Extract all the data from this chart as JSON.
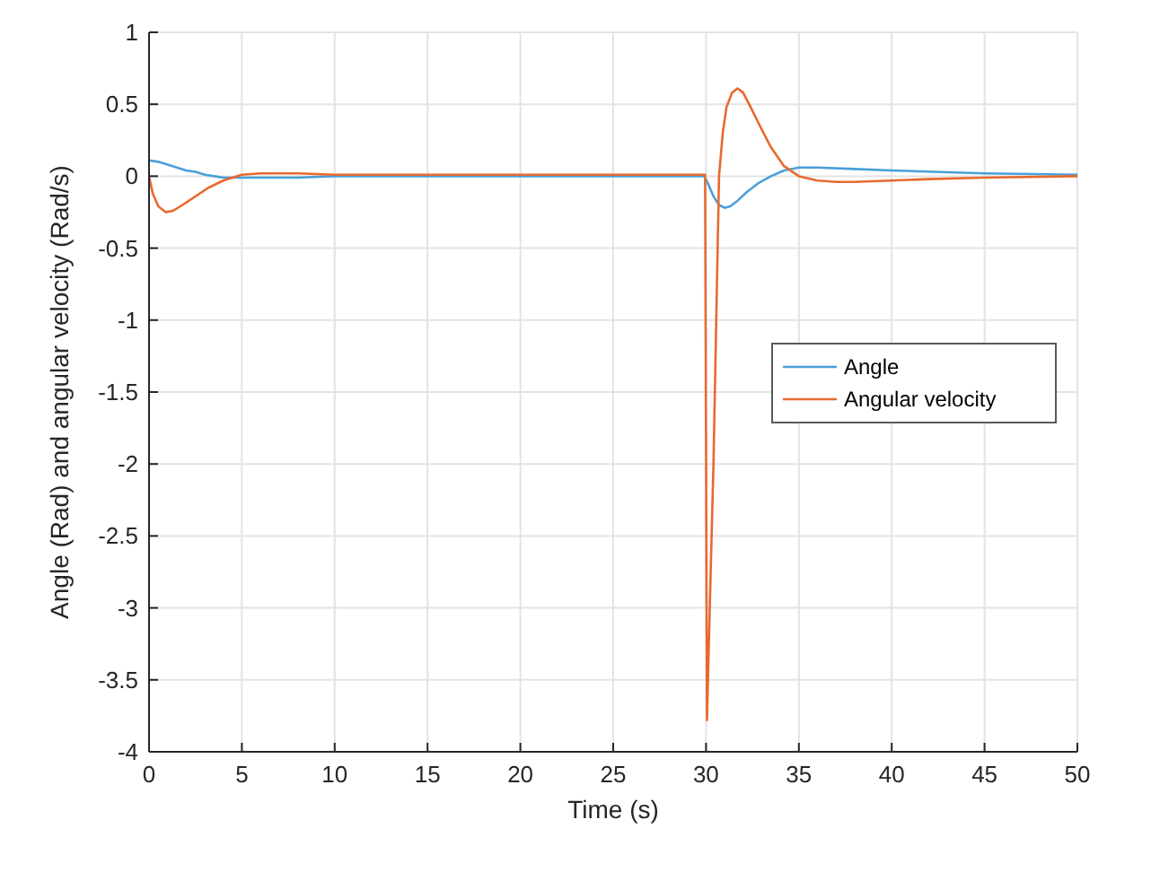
{
  "chart_data": {
    "type": "line",
    "xlabel": "Time (s)",
    "ylabel": "Angle (Rad) and angular velocity (Rad/s)",
    "xlim": [
      0,
      50
    ],
    "ylim": [
      -4,
      1
    ],
    "xticks": [
      0,
      5,
      10,
      15,
      20,
      25,
      30,
      35,
      40,
      45,
      50
    ],
    "yticks": [
      -4,
      -3.5,
      -3,
      -2.5,
      -2,
      -1.5,
      -1,
      -0.5,
      0,
      0.5,
      1
    ],
    "grid": true,
    "legend": "right",
    "line_style": "solid",
    "marker": "none",
    "series": [
      {
        "name": "Angle",
        "color": "#4a9fd8",
        "x": [
          0,
          0.5,
          1,
          1.5,
          2,
          2.5,
          3,
          3.5,
          4,
          5,
          6,
          8,
          10,
          15,
          20,
          25,
          29.9,
          30.1,
          30.4,
          30.7,
          31,
          31.3,
          31.7,
          32.2,
          32.8,
          33.5,
          34.2,
          35,
          36,
          38,
          40,
          45,
          50
        ],
        "values": [
          0.11,
          0.1,
          0.08,
          0.06,
          0.04,
          0.03,
          0.01,
          0,
          -0.01,
          -0.01,
          -0.01,
          -0.01,
          0,
          0,
          0,
          0,
          0,
          -0.05,
          -0.14,
          -0.2,
          -0.22,
          -0.21,
          -0.17,
          -0.11,
          -0.05,
          0,
          0.04,
          0.06,
          0.06,
          0.05,
          0.04,
          0.02,
          0.01
        ]
      },
      {
        "name": "Angular velocity",
        "color": "#e8692f",
        "x": [
          0,
          0.2,
          0.5,
          0.9,
          1.3,
          1.8,
          2.5,
          3.2,
          4,
          5,
          6,
          8,
          10,
          15,
          20,
          25,
          29.95,
          30.05,
          30.2,
          30.4,
          30.55,
          30.7,
          30.9,
          31.1,
          31.4,
          31.7,
          32,
          32.4,
          32.9,
          33.5,
          34.2,
          35,
          36,
          37,
          38,
          40,
          42,
          45,
          50
        ],
        "values": [
          0,
          -0.12,
          -0.21,
          -0.25,
          -0.24,
          -0.2,
          -0.14,
          -0.08,
          -0.03,
          0.01,
          0.02,
          0.02,
          0.01,
          0.01,
          0.01,
          0.01,
          0.01,
          -3.78,
          -3,
          -2,
          -1,
          0,
          0.3,
          0.48,
          0.58,
          0.61,
          0.58,
          0.48,
          0.35,
          0.2,
          0.07,
          0,
          -0.03,
          -0.04,
          -0.04,
          -0.03,
          -0.02,
          -0.01,
          0
        ]
      }
    ]
  }
}
